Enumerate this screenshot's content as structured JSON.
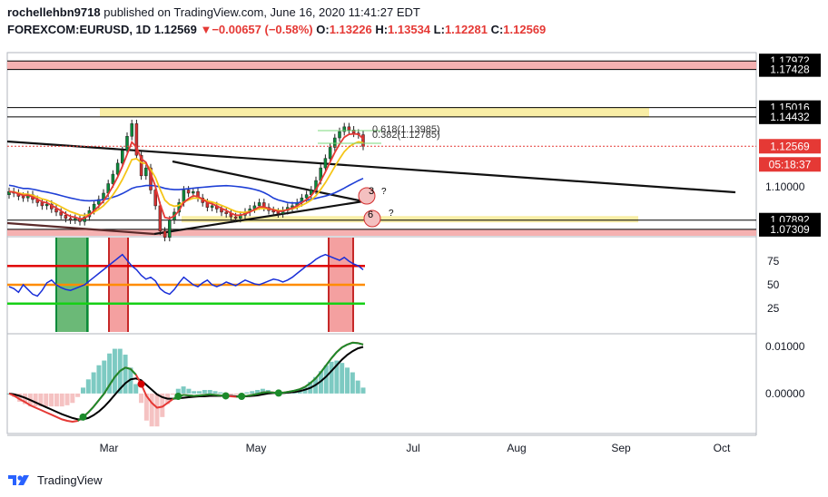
{
  "header": {
    "username": "rochellehbn9718",
    "published_text": "published on TradingView.com, June 16, 2020 11:41:27 EDT",
    "symbol": "FOREXCOM:EURUSD, 1D",
    "price": "1.12569",
    "change_arrow": "▼",
    "change": "−0.00657 (−0.58%)",
    "o_label": "O:",
    "o_value": "1.13226",
    "h_label": "H:",
    "h_value": "1.13534",
    "l_label": "L:",
    "l_value": "1.12281",
    "c_label": "C:",
    "c_value": "1.12569"
  },
  "footer": {
    "brand": "TradingView"
  },
  "colors": {
    "bull": "#0b8a3a",
    "bear": "#d32f2f",
    "ema_red": "#e53935",
    "ema_yellow": "#f5c518",
    "ma_blue": "#1e3fd6",
    "zone_red": "#f4a8a8",
    "zone_yellow": "#f8ec9c",
    "rsi_line": "#1a2fd8"
  },
  "chart_data": [
    {
      "type": "candlestick",
      "symbol": "FOREXCOM:EURUSD",
      "timeframe": "1D",
      "x_tick_labels": [
        "Mar",
        "May",
        "Jul",
        "Aug",
        "Sep",
        "Oct"
      ],
      "y_tick_labels": [
        "1.10000"
      ],
      "price_labels": [
        "1.17972",
        "1.17428",
        "1.15016",
        "1.14432",
        "1.12569",
        "05:18:37",
        "1.07892",
        "1.07309"
      ],
      "countdown": "05:18:37",
      "ylim": [
        1.069,
        1.185
      ],
      "annotations": [
        "0.618(1.13985)",
        "0.382(1.12785)",
        "3",
        "6",
        "?"
      ],
      "horizontal_levels": [
        1.17972,
        1.17428,
        1.15016,
        1.14432,
        1.07892,
        1.07309
      ],
      "zones": [
        {
          "color": "red",
          "from": 1.17428,
          "to": 1.17972
        },
        {
          "color": "yellow",
          "from": 1.14432,
          "to": 1.15016
        },
        {
          "color": "yellow",
          "from": 1.0775,
          "to": 1.0815
        },
        {
          "color": "red",
          "from": 1.069,
          "to": 1.07309
        }
      ],
      "ohlc_last": {
        "open": 1.13226,
        "high": 1.13534,
        "low": 1.12281,
        "close": 1.12569
      },
      "close_series": [
        1.097,
        1.096,
        1.094,
        1.093,
        1.095,
        1.092,
        1.09,
        1.088,
        1.089,
        1.086,
        1.084,
        1.082,
        1.08,
        1.079,
        1.08,
        1.078,
        1.081,
        1.085,
        1.089,
        1.092,
        1.096,
        1.102,
        1.108,
        1.115,
        1.123,
        1.132,
        1.14,
        1.12,
        1.107,
        1.112,
        1.098,
        1.088,
        1.072,
        1.068,
        1.079,
        1.084,
        1.09,
        1.098,
        1.096,
        1.097,
        1.093,
        1.09,
        1.087,
        1.088,
        1.086,
        1.084,
        1.083,
        1.081,
        1.08,
        1.082,
        1.084,
        1.086,
        1.088,
        1.09,
        1.087,
        1.085,
        1.084,
        1.083,
        1.085,
        1.087,
        1.088,
        1.09,
        1.093,
        1.095,
        1.098,
        1.104,
        1.112,
        1.118,
        1.125,
        1.131,
        1.135,
        1.138,
        1.136,
        1.134,
        1.133,
        1.1257
      ]
    },
    {
      "type": "line",
      "name_hint": "oscillator",
      "y_tick_labels": [
        "75",
        "50",
        "25"
      ],
      "ylim": [
        0,
        100
      ],
      "levels": [
        70,
        50,
        30
      ],
      "values": [
        48,
        46,
        42,
        50,
        45,
        40,
        38,
        44,
        52,
        55,
        50,
        47,
        45,
        44,
        46,
        48,
        50,
        54,
        58,
        62,
        66,
        70,
        74,
        78,
        82,
        76,
        70,
        66,
        60,
        56,
        58,
        54,
        46,
        42,
        40,
        45,
        52,
        58,
        54,
        50,
        48,
        52,
        55,
        50,
        48,
        50,
        53,
        51,
        49,
        52,
        55,
        53,
        51,
        50,
        52,
        54,
        56,
        55,
        53,
        55,
        58,
        62,
        66,
        70,
        73,
        77,
        80,
        82,
        80,
        78,
        76,
        79,
        75,
        72,
        70,
        66
      ]
    },
    {
      "type": "line",
      "name_hint": "macd",
      "y_tick_labels": [
        "0.01000",
        "0.00000"
      ],
      "ylim": [
        -0.0085,
        0.0125
      ],
      "macd": [
        0.0,
        -0.0005,
        -0.0012,
        -0.0018,
        -0.0025,
        -0.003,
        -0.0035,
        -0.004,
        -0.0045,
        -0.005,
        -0.0055,
        -0.0058,
        -0.006,
        -0.0058,
        -0.005,
        -0.004,
        -0.0028,
        -0.0014,
        0.0,
        0.0018,
        0.0035,
        0.0048,
        0.0055,
        0.0052,
        0.004,
        0.002,
        -0.0005,
        -0.002,
        -0.003,
        -0.0028,
        -0.002,
        -0.0012,
        -0.0006,
        -0.0003,
        -0.0004,
        -0.0005,
        -0.0004,
        -0.0003,
        -0.0002,
        -0.0003,
        -0.0004,
        -0.0005,
        -0.0006,
        -0.0007,
        -0.0006,
        -0.0005,
        -0.0003,
        -0.0001,
        0.0002,
        0.0003,
        0.0002,
        0.0001,
        0.0002,
        0.0004,
        0.0006,
        0.0009,
        0.0014,
        0.0022,
        0.0032,
        0.0045,
        0.006,
        0.0075,
        0.0088,
        0.0098,
        0.0104,
        0.0108,
        0.0107,
        0.0104
      ],
      "signal": [
        0.0,
        -0.0002,
        -0.0005,
        -0.0009,
        -0.0014,
        -0.0019,
        -0.0024,
        -0.0029,
        -0.0034,
        -0.0039,
        -0.0044,
        -0.0048,
        -0.0052,
        -0.0055,
        -0.0055,
        -0.0052,
        -0.0046,
        -0.0038,
        -0.0028,
        -0.0016,
        -0.0003,
        0.001,
        0.0022,
        0.003,
        0.0032,
        0.0028,
        0.0018,
        0.0008,
        -0.0002,
        -0.0008,
        -0.0011,
        -0.0011,
        -0.001,
        -0.0009,
        -0.0008,
        -0.0007,
        -0.0006,
        -0.0006,
        -0.0005,
        -0.0005,
        -0.0005,
        -0.0005,
        -0.0005,
        -0.0006,
        -0.0006,
        -0.0006,
        -0.0005,
        -0.0004,
        -0.0002,
        0.0,
        0.0001,
        0.0001,
        0.0001,
        0.0002,
        0.0003,
        0.0005,
        0.0008,
        0.0012,
        0.0018,
        0.0026,
        0.0036,
        0.0048,
        0.006,
        0.0072,
        0.0082,
        0.009,
        0.0096,
        0.0099
      ]
    }
  ]
}
